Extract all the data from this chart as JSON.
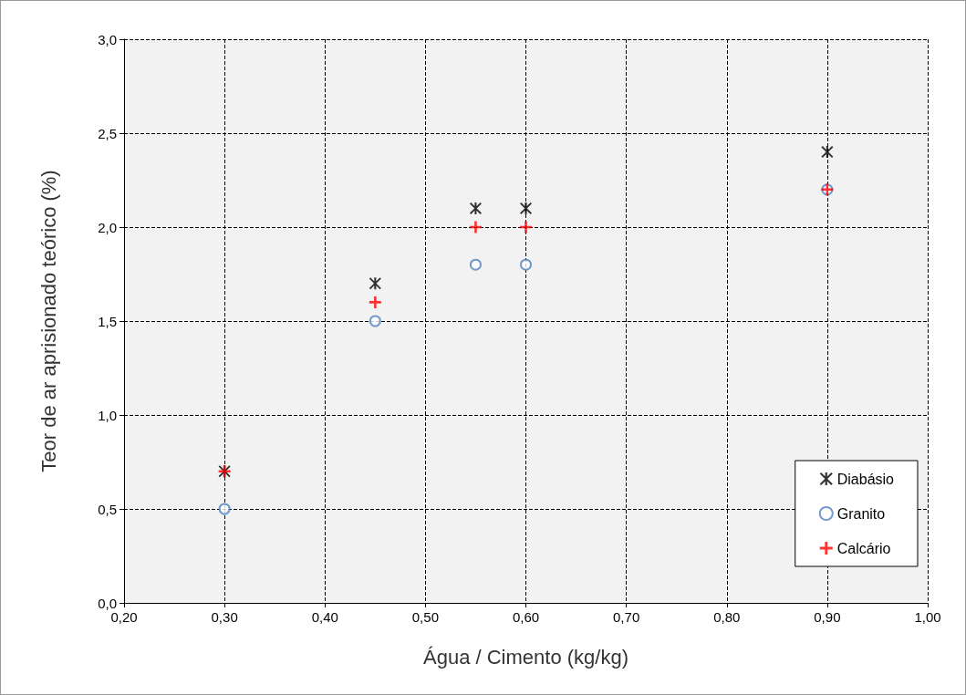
{
  "chart_data": {
    "type": "scatter",
    "xlabel": "Água / Cimento (kg/kg)",
    "ylabel": "Teor de ar aprisionado teórico (%)",
    "x": [
      0.3,
      0.45,
      0.55,
      0.6,
      0.9
    ],
    "series": [
      {
        "name": "Diabásio",
        "color": "#000000",
        "marker": "star",
        "values": [
          0.7,
          1.7,
          2.1,
          2.1,
          2.4
        ]
      },
      {
        "name": "Granito",
        "color": "#4f81bd",
        "marker": "circle",
        "values": [
          0.5,
          1.5,
          1.8,
          1.8,
          2.2
        ]
      },
      {
        "name": "Calcário",
        "color": "#ff0000",
        "marker": "cross",
        "values": [
          0.7,
          1.6,
          2.0,
          2.0,
          2.2
        ]
      }
    ],
    "xlim": [
      0.2,
      1.0
    ],
    "xticks": [
      {
        "value": 0.2,
        "label": "0,20"
      },
      {
        "value": 0.3,
        "label": "0,30"
      },
      {
        "value": 0.4,
        "label": "0,40"
      },
      {
        "value": 0.5,
        "label": "0,50"
      },
      {
        "value": 0.6,
        "label": "0,60"
      },
      {
        "value": 0.7,
        "label": "0,70"
      },
      {
        "value": 0.8,
        "label": "0,80"
      },
      {
        "value": 0.9,
        "label": "0,90"
      },
      {
        "value": 1.0,
        "label": "1,00"
      }
    ],
    "ylim": [
      0,
      3.0
    ],
    "yticks": [
      {
        "value": 0,
        "label": "0,0"
      },
      {
        "value": 0.5,
        "label": "0,5"
      },
      {
        "value": 1.0,
        "label": "1,0"
      },
      {
        "value": 1.5,
        "label": "1,5"
      },
      {
        "value": 2.0,
        "label": "2,0"
      },
      {
        "value": 2.5,
        "label": "2,5"
      },
      {
        "value": 3.0,
        "label": "3,0"
      }
    ],
    "grid": true,
    "legend": "bottom right"
  }
}
